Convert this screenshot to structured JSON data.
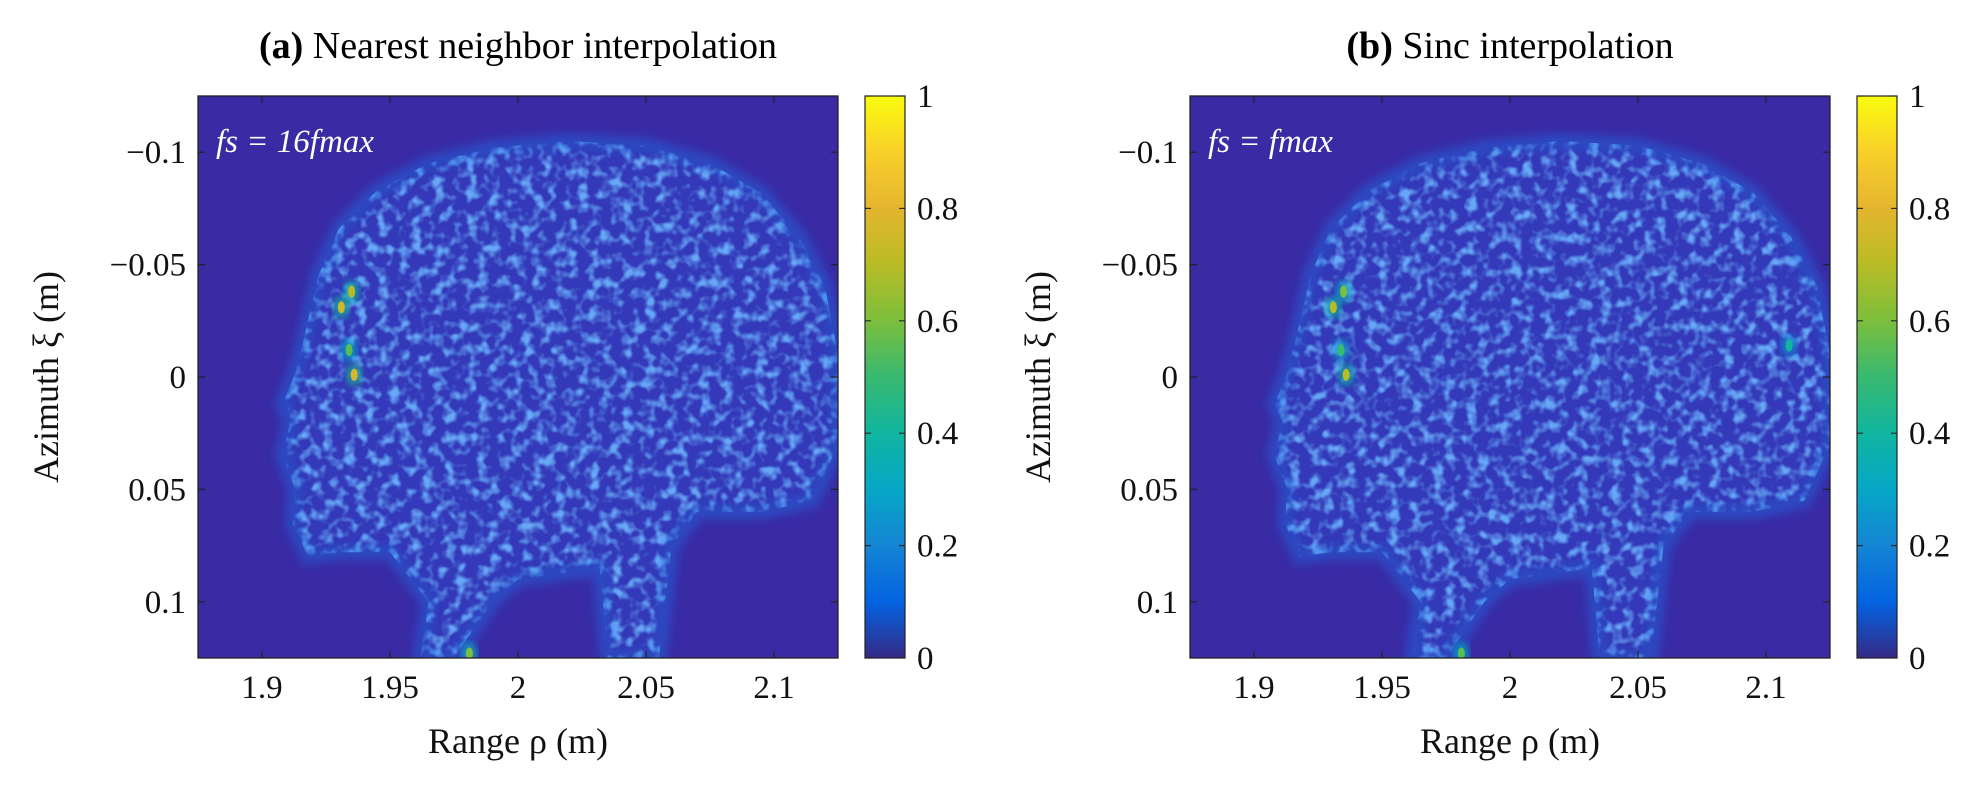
{
  "chart_data": [
    {
      "type": "heatmap",
      "title_prefix": "(a)",
      "title": "Nearest neighbor interpolation",
      "annotation": "f_s = 16 f_max",
      "annotation_text": "fs = 16fmax",
      "xlabel": "Range ρ (m)",
      "ylabel": "Azimuth ξ (m)",
      "xlim": [
        1.875,
        2.125
      ],
      "ylim": [
        -0.125,
        0.125
      ],
      "y_reversed": true,
      "xticks": [
        1.9,
        1.95,
        2,
        2.05,
        2.1
      ],
      "xtick_labels": [
        "1.9",
        "1.95",
        "2",
        "2.05",
        "2.1"
      ],
      "yticks": [
        -0.1,
        -0.05,
        0,
        0.05,
        0.1
      ],
      "ytick_labels": [
        "−0.1",
        "−0.05",
        "0",
        "0.05",
        "0.1"
      ],
      "colorbar": {
        "range": [
          0,
          1
        ],
        "ticks": [
          "0",
          "0.2",
          "0.4",
          "0.6",
          "0.8",
          "1"
        ],
        "colormap": "parula"
      },
      "hotspots": [
        {
          "x": 1.931,
          "y": -0.031,
          "value": 0.75
        },
        {
          "x": 1.935,
          "y": -0.038,
          "value": 0.7
        },
        {
          "x": 1.934,
          "y": -0.012,
          "value": 0.55
        },
        {
          "x": 1.936,
          "y": -0.001,
          "value": 0.78
        },
        {
          "x": 1.981,
          "y": 0.123,
          "value": 0.6
        }
      ]
    },
    {
      "type": "heatmap",
      "title_prefix": "(b)",
      "title": "Sinc interpolation",
      "annotation": "f_s = f_max",
      "annotation_text": "fs = fmax",
      "xlabel": "Range ρ (m)",
      "ylabel": "Azimuth ξ (m)",
      "xlim": [
        1.875,
        2.125
      ],
      "ylim": [
        -0.125,
        0.125
      ],
      "y_reversed": true,
      "xticks": [
        1.9,
        1.95,
        2,
        2.05,
        2.1
      ],
      "xtick_labels": [
        "1.9",
        "1.95",
        "2",
        "2.05",
        "2.1"
      ],
      "yticks": [
        -0.1,
        -0.05,
        0,
        0.05,
        0.1
      ],
      "ytick_labels": [
        "−0.1",
        "−0.05",
        "0",
        "0.05",
        "0.1"
      ],
      "colorbar": {
        "range": [
          0,
          1
        ],
        "ticks": [
          "0",
          "0.2",
          "0.4",
          "0.6",
          "0.8",
          "1"
        ],
        "colormap": "parula"
      },
      "hotspots": [
        {
          "x": 1.931,
          "y": -0.031,
          "value": 0.7
        },
        {
          "x": 1.935,
          "y": -0.038,
          "value": 0.6
        },
        {
          "x": 1.934,
          "y": -0.012,
          "value": 0.5
        },
        {
          "x": 1.936,
          "y": -0.001,
          "value": 0.7
        },
        {
          "x": 2.109,
          "y": -0.014,
          "value": 0.4
        },
        {
          "x": 1.981,
          "y": 0.123,
          "value": 0.55
        }
      ]
    }
  ]
}
